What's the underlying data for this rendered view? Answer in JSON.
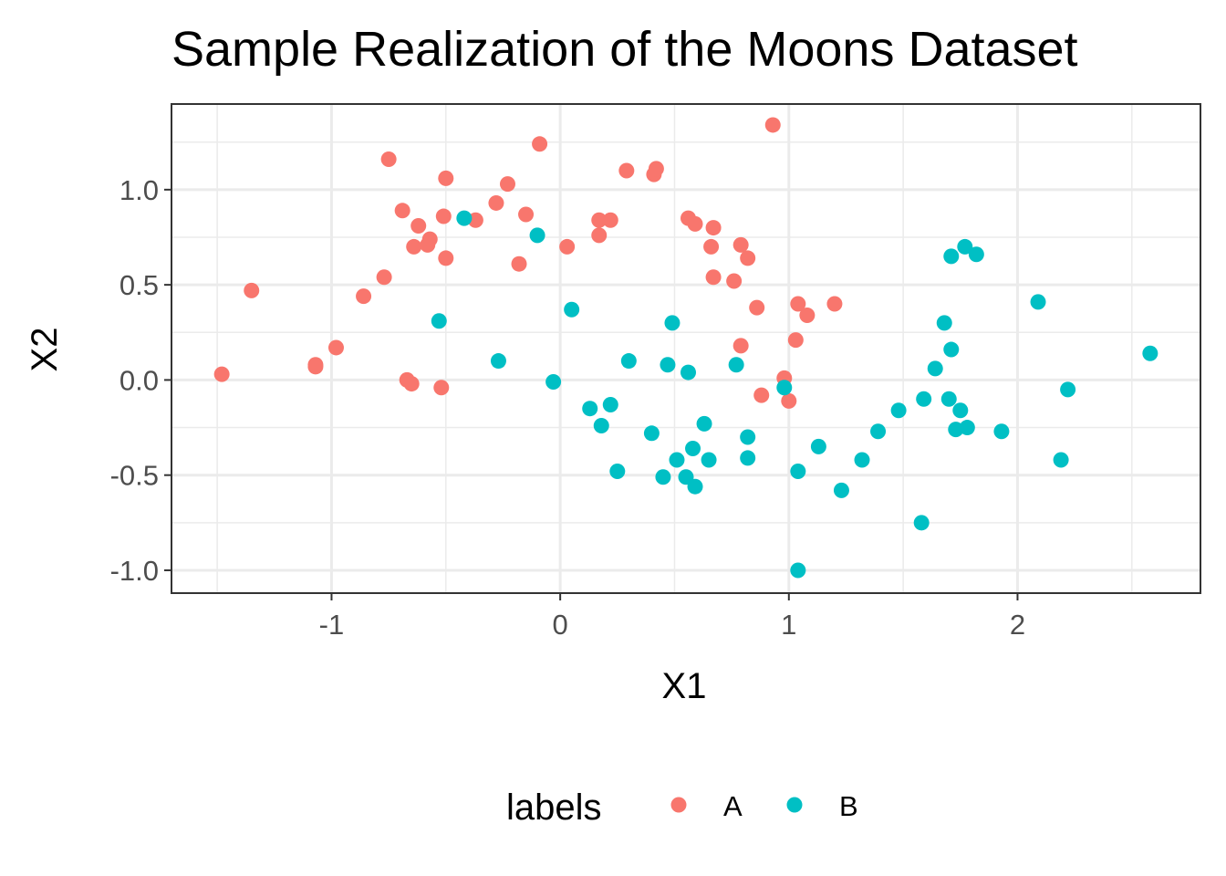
{
  "chart_data": {
    "type": "scatter",
    "title": "Sample Realization of the Moons Dataset",
    "xlabel": "X1",
    "ylabel": "X2",
    "xlim": [
      -1.7,
      2.8
    ],
    "ylim": [
      -1.12,
      1.45
    ],
    "x_ticks": [
      -1,
      0,
      1,
      2
    ],
    "x_tick_labels": [
      "-1",
      "0",
      "1",
      "2"
    ],
    "y_ticks": [
      -1.0,
      -0.5,
      0.0,
      0.5,
      1.0
    ],
    "y_tick_labels": [
      "-1.0",
      "-0.5",
      "0.0",
      "0.5",
      "1.0"
    ],
    "x_minor": [
      -1.5,
      -0.5,
      0.5,
      1.5,
      2.5
    ],
    "y_minor": [
      -0.75,
      -0.25,
      0.25,
      0.75,
      1.25
    ],
    "grid": true,
    "legend_title": "labels",
    "legend_position": "bottom",
    "series": [
      {
        "name": "A",
        "color": "#F8766D",
        "points": [
          [
            -1.48,
            0.03
          ],
          [
            -1.35,
            0.47
          ],
          [
            -1.07,
            0.07
          ],
          [
            -1.07,
            0.08
          ],
          [
            -0.98,
            0.17
          ],
          [
            -0.86,
            0.44
          ],
          [
            -0.77,
            0.54
          ],
          [
            -0.75,
            1.16
          ],
          [
            -0.69,
            0.89
          ],
          [
            -0.67,
            0.0
          ],
          [
            -0.65,
            -0.02
          ],
          [
            -0.64,
            0.7
          ],
          [
            -0.62,
            0.81
          ],
          [
            -0.58,
            0.71
          ],
          [
            -0.57,
            0.74
          ],
          [
            -0.52,
            -0.04
          ],
          [
            -0.51,
            0.86
          ],
          [
            -0.5,
            1.06
          ],
          [
            -0.5,
            0.64
          ],
          [
            -0.37,
            0.84
          ],
          [
            -0.28,
            0.93
          ],
          [
            -0.23,
            1.03
          ],
          [
            -0.18,
            0.61
          ],
          [
            -0.15,
            0.87
          ],
          [
            -0.09,
            1.24
          ],
          [
            0.03,
            0.7
          ],
          [
            0.17,
            0.84
          ],
          [
            0.17,
            0.76
          ],
          [
            0.22,
            0.84
          ],
          [
            0.29,
            1.1
          ],
          [
            0.41,
            1.08
          ],
          [
            0.42,
            1.11
          ],
          [
            0.56,
            0.85
          ],
          [
            0.59,
            0.82
          ],
          [
            0.66,
            0.7
          ],
          [
            0.67,
            0.8
          ],
          [
            0.67,
            0.54
          ],
          [
            0.76,
            0.52
          ],
          [
            0.79,
            0.71
          ],
          [
            0.79,
            0.18
          ],
          [
            0.82,
            0.64
          ],
          [
            0.86,
            0.38
          ],
          [
            0.88,
            -0.08
          ],
          [
            0.93,
            1.34
          ],
          [
            0.98,
            0.01
          ],
          [
            1.0,
            -0.11
          ],
          [
            1.03,
            0.21
          ],
          [
            1.04,
            0.4
          ],
          [
            1.08,
            0.34
          ],
          [
            1.2,
            0.4
          ]
        ]
      },
      {
        "name": "B",
        "color": "#00BFC4",
        "points": [
          [
            -0.53,
            0.31
          ],
          [
            -0.42,
            0.85
          ],
          [
            -0.27,
            0.1
          ],
          [
            -0.1,
            0.76
          ],
          [
            -0.03,
            -0.01
          ],
          [
            0.05,
            0.37
          ],
          [
            0.13,
            -0.15
          ],
          [
            0.18,
            -0.24
          ],
          [
            0.22,
            -0.13
          ],
          [
            0.25,
            -0.48
          ],
          [
            0.3,
            0.1
          ],
          [
            0.4,
            -0.28
          ],
          [
            0.45,
            -0.51
          ],
          [
            0.47,
            0.08
          ],
          [
            0.49,
            0.3
          ],
          [
            0.51,
            -0.42
          ],
          [
            0.55,
            -0.51
          ],
          [
            0.56,
            0.04
          ],
          [
            0.58,
            -0.36
          ],
          [
            0.59,
            -0.56
          ],
          [
            0.63,
            -0.23
          ],
          [
            0.65,
            -0.42
          ],
          [
            0.77,
            0.08
          ],
          [
            0.82,
            -0.3
          ],
          [
            0.82,
            -0.41
          ],
          [
            0.98,
            -0.04
          ],
          [
            1.04,
            -1.0
          ],
          [
            1.04,
            -0.48
          ],
          [
            1.13,
            -0.35
          ],
          [
            1.23,
            -0.58
          ],
          [
            1.32,
            -0.42
          ],
          [
            1.39,
            -0.27
          ],
          [
            1.48,
            -0.16
          ],
          [
            1.58,
            -0.75
          ],
          [
            1.59,
            -0.1
          ],
          [
            1.64,
            0.06
          ],
          [
            1.68,
            0.3
          ],
          [
            1.7,
            -0.1
          ],
          [
            1.71,
            0.16
          ],
          [
            1.71,
            0.65
          ],
          [
            1.73,
            -0.26
          ],
          [
            1.75,
            -0.16
          ],
          [
            1.77,
            0.7
          ],
          [
            1.78,
            -0.25
          ],
          [
            1.82,
            0.66
          ],
          [
            1.93,
            -0.27
          ],
          [
            2.09,
            0.41
          ],
          [
            2.19,
            -0.42
          ],
          [
            2.22,
            -0.05
          ],
          [
            2.58,
            0.14
          ]
        ]
      }
    ]
  }
}
